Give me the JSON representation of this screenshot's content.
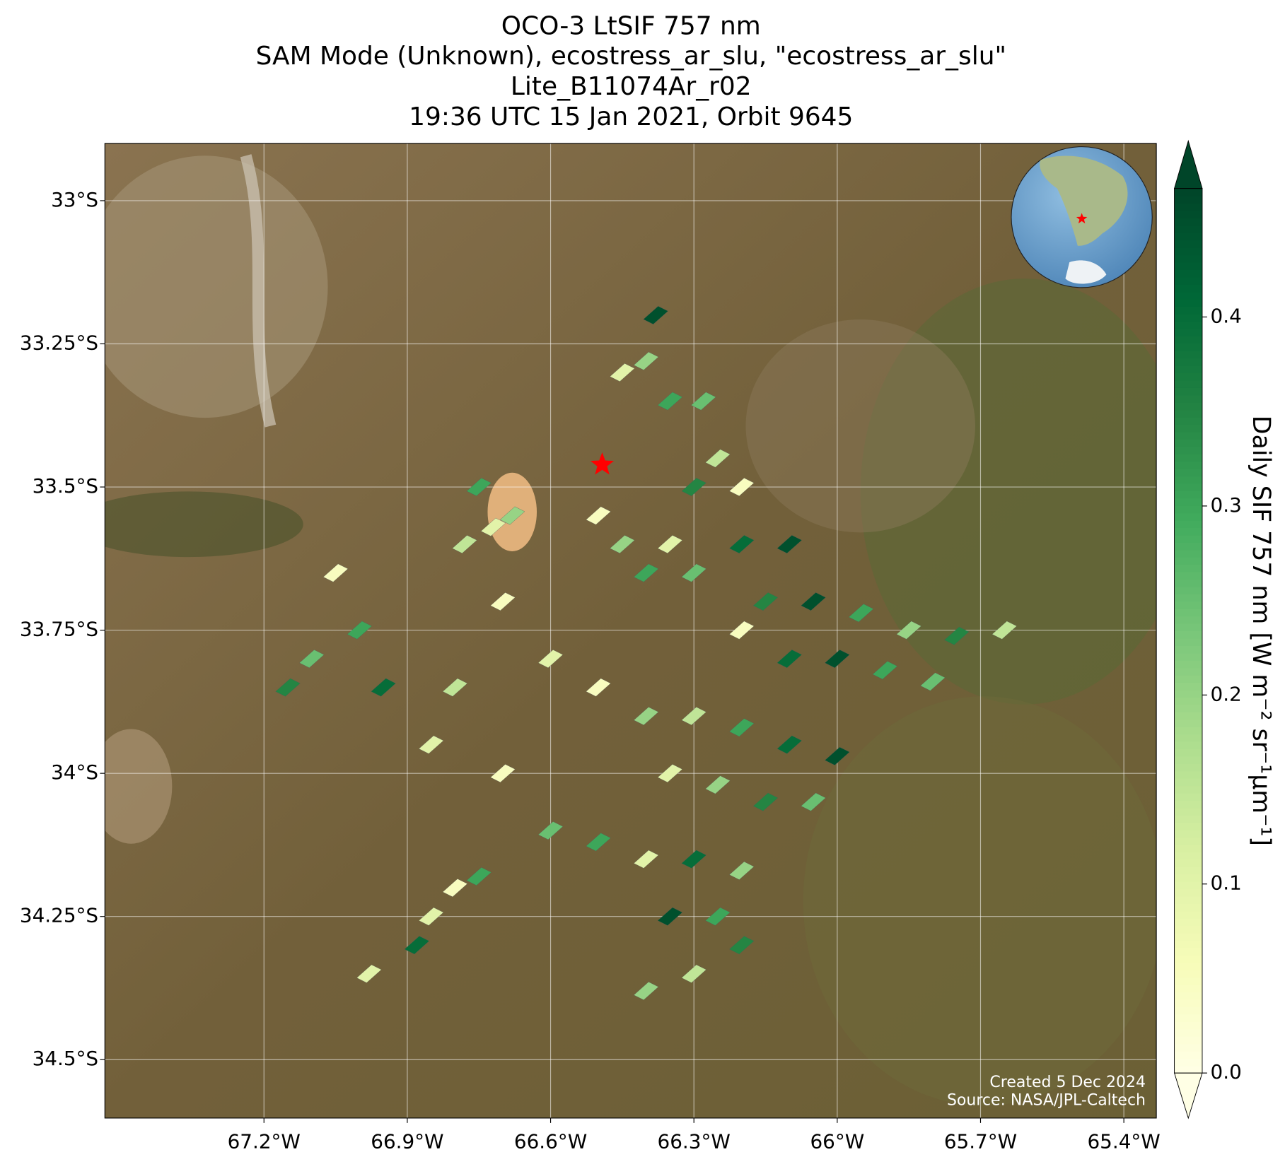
{
  "chart_data": {
    "type": "map",
    "title": [
      "OCO-3 LtSIF 757 nm",
      "SAM Mode (Unknown), ecostress_ar_slu, \"ecostress_ar_slu\"",
      "Lite_B11074Ar_r02",
      "19:36 UTC 15 Jan 2021, Orbit 9645"
    ],
    "xlim": [
      -67.533,
      -65.332
    ],
    "ylim": [
      -34.602,
      -32.9
    ],
    "xticks": [
      {
        "value": -67.2,
        "label": "67.2°W"
      },
      {
        "value": -66.9,
        "label": "66.9°W"
      },
      {
        "value": -66.6,
        "label": "66.6°W"
      },
      {
        "value": -66.3,
        "label": "66.3°W"
      },
      {
        "value": -66.0,
        "label": "66°W"
      },
      {
        "value": -65.7,
        "label": "65.7°W"
      },
      {
        "value": -65.4,
        "label": "65.4°W"
      }
    ],
    "yticks": [
      {
        "value": -33.0,
        "label": "33°S"
      },
      {
        "value": -33.25,
        "label": "33.25°S"
      },
      {
        "value": -33.5,
        "label": "33.5°S"
      },
      {
        "value": -33.75,
        "label": "33.75°S"
      },
      {
        "value": -34.0,
        "label": "34°S"
      },
      {
        "value": -34.25,
        "label": "34.25°S"
      },
      {
        "value": -34.5,
        "label": "34.5°S"
      }
    ],
    "grid": true,
    "target": {
      "lon": -66.492,
      "lat": -33.461,
      "color": "#ff0000"
    },
    "colorbar": {
      "label": "Daily SIF 757 nm [W m⁻² sr⁻¹μm⁻¹]",
      "vlim": [
        0,
        0.468
      ],
      "ticks": [
        {
          "value": 0,
          "label": "0.0"
        },
        0.1,
        0.2,
        0.3,
        0.4
      ],
      "extend": "both",
      "colors": [
        "#ffffe5",
        "#f7fcb9",
        "#d9f0a3",
        "#addd8e",
        "#78c679",
        "#41ab5d",
        "#238443",
        "#006837",
        "#004529"
      ]
    },
    "soundings": {
      "lon": [
        -66.38,
        -66.4,
        -66.35,
        -66.45,
        -66.28,
        -66.25,
        -66.3,
        -66.2,
        -66.75,
        -66.72,
        -66.68,
        -66.78,
        -67.05,
        -67.0,
        -67.1,
        -67.15,
        -66.95,
        -66.98,
        -66.5,
        -66.45,
        -66.4,
        -66.35,
        -66.3,
        -66.2,
        -66.1,
        -66.15,
        -66.05,
        -65.95,
        -65.85,
        -65.75,
        -65.65,
        -66.2,
        -66.1,
        -66.0,
        -65.9,
        -65.8,
        -66.6,
        -66.5,
        -66.4,
        -66.3,
        -66.2,
        -66.1,
        -66.0,
        -66.35,
        -66.25,
        -66.15,
        -66.05,
        -66.7,
        -66.6,
        -66.5,
        -66.4,
        -66.3,
        -66.2,
        -66.8,
        -66.85,
        -66.75,
        -66.88,
        -66.35,
        -66.25,
        -66.3,
        -66.4,
        -66.2,
        -66.7,
        -66.8,
        -66.85
      ],
      "lat": [
        -33.2,
        -33.28,
        -33.35,
        -33.3,
        -33.35,
        -33.45,
        -33.5,
        -33.5,
        -33.5,
        -33.57,
        -33.55,
        -33.6,
        -33.65,
        -33.75,
        -33.8,
        -33.85,
        -33.85,
        -34.35,
        -33.55,
        -33.6,
        -33.65,
        -33.6,
        -33.65,
        -33.6,
        -33.6,
        -33.7,
        -33.7,
        -33.72,
        -33.75,
        -33.76,
        -33.75,
        -33.75,
        -33.8,
        -33.8,
        -33.82,
        -33.84,
        -33.8,
        -33.85,
        -33.9,
        -33.9,
        -33.92,
        -33.95,
        -33.97,
        -34.0,
        -34.02,
        -34.05,
        -34.05,
        -34.0,
        -34.1,
        -34.12,
        -34.15,
        -34.15,
        -34.17,
        -34.2,
        -34.25,
        -34.18,
        -34.3,
        -34.25,
        -34.25,
        -34.35,
        -34.38,
        -34.3,
        -33.7,
        -33.85,
        -33.95
      ],
      "values": [
        0.45,
        0.2,
        0.3,
        0.1,
        0.25,
        0.15,
        0.35,
        0.05,
        0.3,
        0.1,
        0.2,
        0.15,
        0.05,
        0.3,
        0.25,
        0.35,
        0.4,
        0.1,
        0.05,
        0.2,
        0.3,
        0.1,
        0.25,
        0.4,
        0.45,
        0.35,
        0.45,
        0.3,
        0.2,
        0.35,
        0.15,
        0.05,
        0.4,
        0.45,
        0.3,
        0.25,
        0.1,
        0.05,
        0.2,
        0.15,
        0.3,
        0.4,
        0.45,
        0.1,
        0.2,
        0.35,
        0.25,
        0.05,
        0.25,
        0.3,
        0.1,
        0.4,
        0.2,
        0.05,
        0.1,
        0.3,
        0.4,
        0.45,
        0.3,
        0.15,
        0.2,
        0.35,
        0.05,
        0.15,
        0.1
      ]
    },
    "credits": [
      "Created 5 Dec 2024",
      "Source: NASA/JPL-Caltech"
    ]
  }
}
